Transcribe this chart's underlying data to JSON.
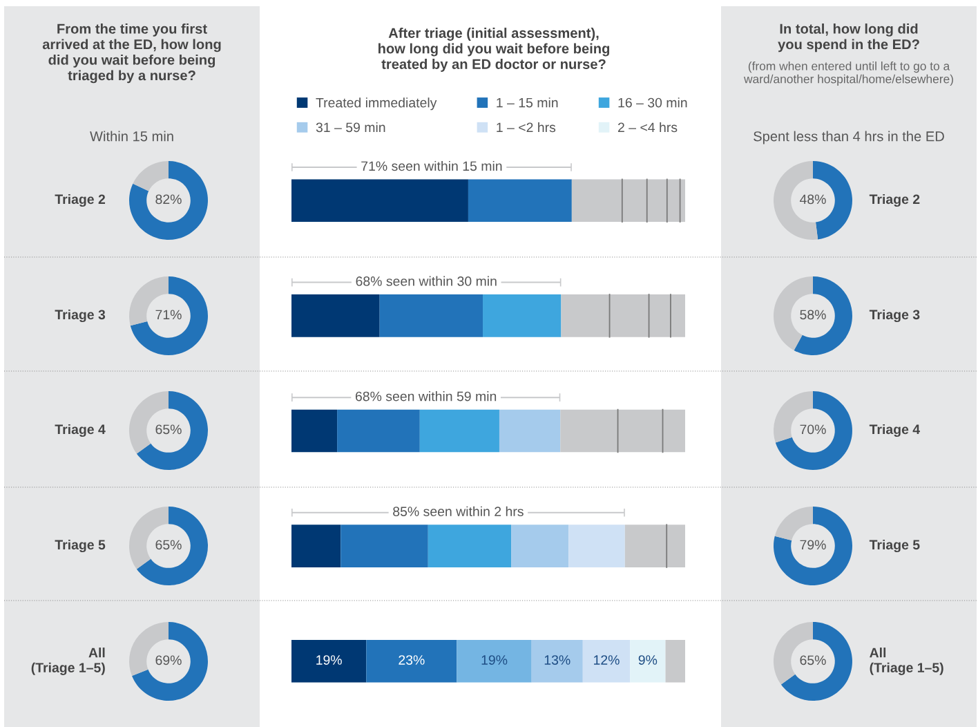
{
  "chart_data": [
    {
      "type": "other",
      "title": "From the time you first\narrived at the ED, how long\ndid you wait before being\ntriaged by a nurse?",
      "subtitle": "Within 15 min"
    },
    {
      "type": "donut",
      "title": "Triage 2",
      "categories": [
        null,
        null
      ],
      "values": [
        82,
        18
      ],
      "colors": [
        "#2273b9",
        "#c8c9cb"
      ],
      "value_labels": [
        "82%",
        null
      ]
    },
    {
      "type": "donut",
      "title": "Triage 3",
      "categories": [
        null,
        null
      ],
      "values": [
        71,
        29
      ],
      "colors": [
        "#2273b9",
        "#c8c9cb"
      ],
      "value_labels": [
        "71%",
        null
      ]
    },
    {
      "type": "donut",
      "title": "Triage 4",
      "categories": [
        null,
        null
      ],
      "values": [
        65,
        35
      ],
      "colors": [
        "#2273b9",
        "#c8c9cb"
      ],
      "value_labels": [
        "65%",
        null
      ]
    },
    {
      "type": "donut",
      "title": "Triage 5",
      "categories": [
        null,
        null
      ],
      "values": [
        65,
        35
      ],
      "colors": [
        "#2273b9",
        "#c8c9cb"
      ],
      "value_labels": [
        "65%",
        null
      ]
    },
    {
      "type": "donut",
      "title": "All\n(Triage 1–5)",
      "categories": [
        null,
        null
      ],
      "values": [
        69,
        31
      ],
      "colors": [
        "#2273b9",
        "#c8c9cb"
      ],
      "value_labels": [
        "69%",
        null
      ]
    },
    {
      "type": "bar",
      "title": "After triage (initial assessment),\nhow long did you wait before being\ntreated by an ED doctor or nurse?",
      "orientation": "horizontal",
      "stacked": true,
      "legend": "top",
      "categories": [
        null,
        null,
        null,
        null,
        null
      ],
      "series": [
        {
          "name": "Treated immediately",
          "color": "#003873",
          "colors": [
            "#003873",
            "#003873",
            "#003873",
            "#003873",
            "#003873"
          ],
          "values": [
            44.9,
            22.4,
            11.6,
            12.5,
            19
          ],
          "value_labels": [
            null,
            null,
            null,
            null,
            "19%"
          ]
        },
        {
          "name": "1 – 15 min",
          "color": "#2273b9",
          "colors": [
            "#2273b9",
            "#2273b9",
            "#2273b9",
            "#2273b9",
            "#2273b9"
          ],
          "values": [
            26.3,
            26.2,
            21.0,
            22.2,
            23
          ],
          "value_labels": [
            null,
            null,
            null,
            null,
            "23%"
          ]
        },
        {
          "name": "16 – 30 min",
          "color": "#3ea6de",
          "colors": [
            "#c8c9cb",
            "#3ea6de",
            "#3ea6de",
            "#3ea6de",
            "#74b5e3"
          ],
          "values": [
            12.8,
            19.9,
            20.2,
            21.1,
            19
          ],
          "value_labels": [
            null,
            null,
            null,
            null,
            "19%"
          ]
        },
        {
          "name": "31 – 59 min",
          "color": "#a5cbec",
          "colors": [
            "#c8c9cb",
            "#c8c9cb",
            "#a5cbec",
            "#a5cbec",
            "#a5cbec"
          ],
          "values": [
            6.3,
            12.3,
            15.5,
            14.6,
            13
          ],
          "value_labels": [
            null,
            null,
            null,
            null,
            "13%"
          ]
        },
        {
          "name": "1 – <2 hrs",
          "color": "#cfe1f5",
          "colors": [
            "#c8c9cb",
            "#c8c9cb",
            "#c8c9cb",
            "#cfe1f5",
            "#cfe1f5"
          ],
          "values": [
            5.1,
            10.0,
            14.6,
            14.3,
            12
          ],
          "value_labels": [
            null,
            null,
            null,
            null,
            "12%"
          ]
        },
        {
          "name": "2 – <4 hrs",
          "color": "#e2f3f8",
          "colors": [
            "#c8c9cb",
            "#c8c9cb",
            "#c8c9cb",
            "#c8c9cb",
            "#e2f3f8"
          ],
          "values": [
            3.3,
            5.5,
            11.4,
            10.6,
            9
          ],
          "value_labels": [
            null,
            null,
            null,
            null,
            "9%"
          ]
        },
        {
          "colors": [
            "#c8c9cb",
            "#c8c9cb",
            "#c8c9cb",
            "#c8c9cb",
            "#c8c9cb"
          ],
          "values": [
            1.3,
            3.7,
            5.7,
            4.7,
            5
          ]
        }
      ],
      "annotations": [
        "71% seen within 15 min",
        "68% seen within 30 min",
        "68% seen within 59 min",
        "85% seen within 2 hrs"
      ]
    },
    {
      "type": "other",
      "title": "In total, how long did\nyou spend in the ED?",
      "subtitle": "(from when entered until left to go to a\nward/another hospital/home/elsewhere)",
      "annotations": [
        "Spent less than 4 hrs in the ED"
      ]
    },
    {
      "type": "donut",
      "title": "Triage 2",
      "categories": [
        null,
        null
      ],
      "values": [
        48,
        52
      ],
      "colors": [
        "#2273b9",
        "#c8c9cb"
      ],
      "value_labels": [
        "48%",
        null
      ]
    },
    {
      "type": "donut",
      "title": "Triage 3",
      "categories": [
        null,
        null
      ],
      "values": [
        58,
        42
      ],
      "colors": [
        "#2273b9",
        "#c8c9cb"
      ],
      "value_labels": [
        "58%",
        null
      ]
    },
    {
      "type": "donut",
      "title": "Triage 4",
      "categories": [
        null,
        null
      ],
      "values": [
        70,
        30
      ],
      "colors": [
        "#2273b9",
        "#c8c9cb"
      ],
      "value_labels": [
        "70%",
        null
      ]
    },
    {
      "type": "donut",
      "title": "Triage 5",
      "categories": [
        null,
        null
      ],
      "values": [
        79,
        21
      ],
      "colors": [
        "#2273b9",
        "#c8c9cb"
      ],
      "value_labels": [
        "79%",
        null
      ]
    },
    {
      "type": "donut",
      "title": "All\n(Triage 1–5)",
      "categories": [
        null,
        null
      ],
      "values": [
        65,
        35
      ],
      "colors": [
        "#2273b9",
        "#c8c9cb"
      ],
      "value_labels": [
        "65%",
        null
      ]
    }
  ]
}
